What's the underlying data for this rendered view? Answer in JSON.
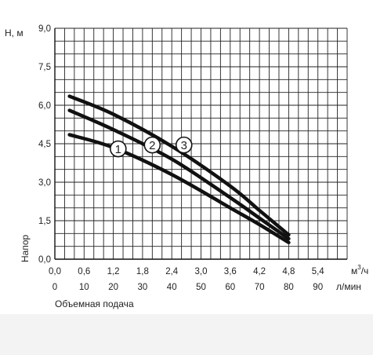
{
  "chart_data": {
    "type": "line",
    "xlabel": "Объемная подача",
    "ylabel": "Напор",
    "y_unit": "H, м",
    "x_unit_primary": "м³/ч",
    "x_unit_primary_base": "м",
    "x_unit_primary_sup": "3",
    "x_unit_primary_tail": "/ч",
    "x_unit_secondary": "л/мин",
    "xlim": [
      0,
      6.0
    ],
    "ylim": [
      0,
      9.0
    ],
    "x_ticks": [
      "0,0",
      "0,6",
      "1,2",
      "1,8",
      "2,4",
      "3,0",
      "3,6",
      "4,2",
      "4,8",
      "5,4"
    ],
    "x_tick_values": [
      0,
      0.6,
      1.2,
      1.8,
      2.4,
      3.0,
      3.6,
      4.2,
      4.8,
      5.4
    ],
    "x2_ticks": [
      "0",
      "10",
      "20",
      "30",
      "40",
      "50",
      "60",
      "70",
      "80",
      "90"
    ],
    "y_ticks": [
      "0,0",
      "1,5",
      "3,0",
      "4,5",
      "6,0",
      "7,5",
      "9,0"
    ],
    "y_tick_values": [
      0,
      1.5,
      3.0,
      4.5,
      6.0,
      7.5,
      9.0
    ],
    "grid": true,
    "series": [
      {
        "name": "1",
        "x": [
          0.3,
          1.2,
          2.4,
          3.6,
          4.2,
          4.8
        ],
        "y": [
          4.85,
          4.35,
          3.3,
          2.0,
          1.35,
          0.65
        ]
      },
      {
        "name": "2",
        "x": [
          0.3,
          1.2,
          2.4,
          3.6,
          4.2,
          4.8
        ],
        "y": [
          5.8,
          5.05,
          3.9,
          2.4,
          1.6,
          0.8
        ]
      },
      {
        "name": "3",
        "x": [
          0.3,
          1.2,
          2.4,
          3.6,
          4.2,
          4.8
        ],
        "y": [
          6.35,
          5.65,
          4.4,
          2.85,
          1.9,
          0.95
        ]
      }
    ],
    "curve_markers": [
      {
        "label": "1",
        "x": 1.3,
        "y": 4.3
      },
      {
        "label": "2",
        "x": 2.0,
        "y": 4.45
      },
      {
        "label": "3",
        "x": 2.65,
        "y": 4.45
      }
    ]
  }
}
